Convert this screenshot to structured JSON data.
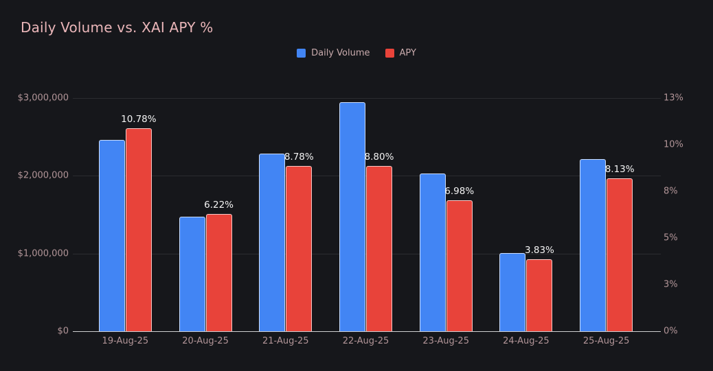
{
  "title": "Daily Volume vs. XAI APY %",
  "colors": {
    "background": "#16171b",
    "title_text": "#eab6b9",
    "axis_text": "#b29598",
    "legend_text": "#c9abad",
    "grid_line": "#2b2c30",
    "axis_line": "#cfd0d2",
    "daily_volume_bar": "#4285f4",
    "apy_bar": "#e8433a",
    "data_label_text": "#f4f4f4"
  },
  "chart_data": {
    "type": "bar",
    "title": "Daily Volume vs. XAI APY %",
    "legend_position": "top",
    "grid": true,
    "categories": [
      "19-Aug-25",
      "20-Aug-25",
      "21-Aug-25",
      "22-Aug-25",
      "23-Aug-25",
      "24-Aug-25",
      "25-Aug-25"
    ],
    "series": [
      {
        "name": "Daily Volume",
        "yaxis": "left",
        "color": "#4285f4",
        "values": [
          2460000,
          1475000,
          2285000,
          2945000,
          2030000,
          1005000,
          2215000
        ]
      },
      {
        "name": "APY",
        "yaxis": "right",
        "color": "#e8433a",
        "values": [
          10.78,
          6.22,
          8.78,
          8.8,
          6.98,
          3.83,
          8.13
        ],
        "labels": [
          "10.78%",
          "6.22%",
          "8.78%",
          "8.80%",
          "6.98%",
          "3.83%",
          "8.13%"
        ]
      }
    ],
    "left_axis": {
      "tick_labels_top_to_bottom": [
        "$3,000,000",
        "$2,000,000",
        "$1,000,000",
        "$0"
      ],
      "min": 0,
      "max": 3000000
    },
    "right_axis": {
      "tick_labels_top_to_bottom": [
        "13%",
        "10%",
        "8%",
        "5%",
        "3%",
        "0%"
      ],
      "min": 0,
      "max": 13,
      "plot_scale_max": 12.4
    }
  }
}
